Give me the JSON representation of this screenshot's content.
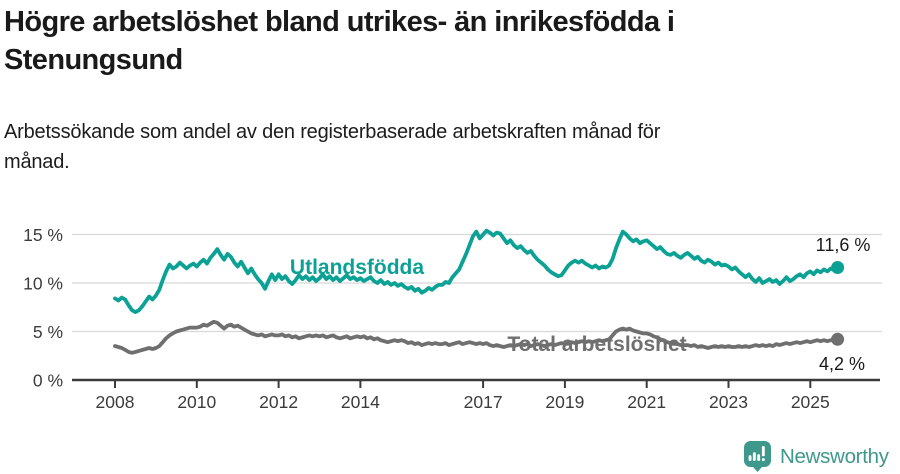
{
  "header": {
    "title": "Högre arbetslöshet bland utrikes- än inrikesfödda i\nStenungsund",
    "subtitle": "Arbetssökande som andel av den registerbaserade arbetskraften månad för\nmånad."
  },
  "footer": {
    "brand": "Newsworthy",
    "logo_icon": "newsworthy-pin-barchart-icon",
    "brand_color": "#3e988c"
  },
  "chart_data": {
    "type": "line",
    "x_start": 2008,
    "x_step_months": 1,
    "x_tick_years": [
      2008,
      2010,
      2012,
      2014,
      2017,
      2019,
      2021,
      2023,
      2025
    ],
    "y_ticks": [
      0,
      5,
      10,
      15
    ],
    "y_tick_suffix": " %",
    "ylim": [
      0,
      16.5
    ],
    "xlim": [
      2008,
      2025.75
    ],
    "grid": true,
    "grid_color": "#d8d8d8",
    "axis_color": "#3b3b3b",
    "axis_text_color": "#3c3c3c",
    "annotation_color": "#1a1a1a",
    "legend_position": "inline-labels",
    "series": [
      {
        "name": "Utlandsfödda",
        "label_text": "Utlandsfödda",
        "color": "#0ba295",
        "end_label": "11,6 %",
        "end_value": 11.6,
        "values": [
          8.4,
          8.2,
          8.5,
          8.3,
          7.7,
          7.2,
          7.0,
          7.2,
          7.6,
          8.1,
          8.6,
          8.3,
          8.7,
          9.3,
          10.3,
          11.2,
          11.9,
          11.5,
          11.7,
          12.1,
          11.8,
          11.5,
          11.8,
          12.0,
          11.7,
          12.1,
          12.4,
          12.0,
          12.6,
          13.0,
          13.5,
          12.9,
          12.4,
          13.0,
          12.7,
          12.1,
          11.7,
          12.2,
          11.6,
          11.0,
          11.5,
          10.9,
          10.4,
          10.0,
          9.4,
          10.2,
          10.9,
          10.3,
          10.9,
          10.4,
          10.7,
          10.2,
          9.9,
          10.3,
          10.8,
          10.4,
          10.7,
          10.3,
          10.6,
          10.2,
          10.5,
          10.9,
          10.4,
          10.7,
          10.3,
          10.6,
          10.2,
          10.5,
          10.8,
          10.4,
          10.6,
          10.3,
          10.5,
          10.2,
          10.4,
          10.6,
          10.2,
          10.0,
          10.3,
          9.9,
          10.1,
          9.8,
          10.0,
          9.7,
          9.9,
          9.6,
          9.4,
          9.6,
          9.2,
          9.4,
          9.0,
          9.2,
          9.5,
          9.3,
          9.6,
          9.8,
          9.8,
          10.1,
          10.0,
          10.6,
          11.0,
          11.4,
          12.2,
          13.0,
          13.9,
          14.8,
          15.3,
          14.6,
          15.0,
          15.4,
          15.2,
          14.9,
          15.2,
          15.1,
          14.6,
          14.1,
          14.4,
          13.9,
          13.6,
          13.8,
          13.4,
          13.1,
          13.3,
          12.8,
          12.4,
          12.1,
          11.8,
          11.4,
          11.1,
          10.9,
          10.7,
          10.8,
          11.3,
          11.8,
          12.1,
          12.3,
          12.1,
          12.3,
          12.0,
          11.8,
          11.6,
          11.8,
          11.5,
          11.7,
          11.6,
          11.8,
          12.5,
          13.6,
          14.5,
          15.3,
          15.0,
          14.6,
          14.3,
          14.5,
          14.1,
          14.3,
          14.4,
          14.1,
          13.8,
          13.5,
          13.7,
          13.3,
          13.0,
          12.9,
          13.1,
          12.8,
          12.6,
          12.9,
          13.1,
          12.8,
          12.5,
          12.7,
          12.3,
          12.1,
          12.4,
          12.2,
          11.9,
          12.1,
          11.8,
          11.9,
          11.7,
          11.4,
          11.6,
          11.2,
          10.9,
          10.6,
          10.9,
          10.4,
          10.1,
          10.5,
          10.0,
          10.2,
          10.4,
          10.1,
          10.3,
          9.9,
          10.2,
          10.6,
          10.2,
          10.4,
          10.7,
          10.9,
          10.6,
          11.0,
          11.2,
          10.9,
          11.3,
          11.1,
          11.4,
          11.2,
          11.5,
          11.3,
          11.6
        ]
      },
      {
        "name": "Total arbetslöshet",
        "label_text": "Total arbetslöshet",
        "color": "#6f6f6f",
        "end_label": "4,2 %",
        "end_value": 4.2,
        "values": [
          3.5,
          3.4,
          3.3,
          3.1,
          2.9,
          2.8,
          2.9,
          3.0,
          3.1,
          3.2,
          3.3,
          3.2,
          3.3,
          3.5,
          3.9,
          4.3,
          4.6,
          4.8,
          5.0,
          5.1,
          5.2,
          5.3,
          5.4,
          5.4,
          5.4,
          5.5,
          5.7,
          5.6,
          5.8,
          6.0,
          5.9,
          5.6,
          5.3,
          5.6,
          5.7,
          5.5,
          5.6,
          5.4,
          5.2,
          5.0,
          4.8,
          4.7,
          4.6,
          4.7,
          4.5,
          4.6,
          4.7,
          4.6,
          4.6,
          4.7,
          4.5,
          4.6,
          4.4,
          4.5,
          4.3,
          4.4,
          4.5,
          4.6,
          4.5,
          4.6,
          4.5,
          4.6,
          4.4,
          4.5,
          4.6,
          4.4,
          4.3,
          4.4,
          4.5,
          4.3,
          4.4,
          4.5,
          4.4,
          4.5,
          4.3,
          4.4,
          4.2,
          4.3,
          4.1,
          4.0,
          3.9,
          4.0,
          4.1,
          4.0,
          4.1,
          4.0,
          3.8,
          3.9,
          3.7,
          3.8,
          3.6,
          3.7,
          3.8,
          3.7,
          3.8,
          3.7,
          3.7,
          3.8,
          3.6,
          3.7,
          3.8,
          3.9,
          3.7,
          3.8,
          3.9,
          3.8,
          3.7,
          3.8,
          3.7,
          3.8,
          3.6,
          3.5,
          3.6,
          3.5,
          3.4,
          3.5,
          3.6,
          3.5,
          3.6,
          3.7,
          3.6,
          3.7,
          3.5,
          3.6,
          3.7,
          3.6,
          3.5,
          3.6,
          3.7,
          3.6,
          3.7,
          3.8,
          3.7,
          3.8,
          3.9,
          3.8,
          3.9,
          4.0,
          3.9,
          4.0,
          3.9,
          4.0,
          4.1,
          4.0,
          4.1,
          4.2,
          4.6,
          5.0,
          5.2,
          5.3,
          5.2,
          5.3,
          5.1,
          5.0,
          4.9,
          4.8,
          4.8,
          4.7,
          4.5,
          4.4,
          4.2,
          4.1,
          3.9,
          3.8,
          3.8,
          3.7,
          3.6,
          3.6,
          3.6,
          3.5,
          3.6,
          3.4,
          3.5,
          3.4,
          3.3,
          3.4,
          3.5,
          3.4,
          3.5,
          3.4,
          3.5,
          3.4,
          3.4,
          3.5,
          3.4,
          3.5,
          3.4,
          3.5,
          3.6,
          3.5,
          3.6,
          3.5,
          3.6,
          3.5,
          3.7,
          3.6,
          3.7,
          3.8,
          3.7,
          3.8,
          3.9,
          3.8,
          3.9,
          4.0,
          3.9,
          4.0,
          4.1,
          4.0,
          4.1,
          4.0,
          4.1,
          4.2,
          4.2
        ]
      }
    ]
  }
}
